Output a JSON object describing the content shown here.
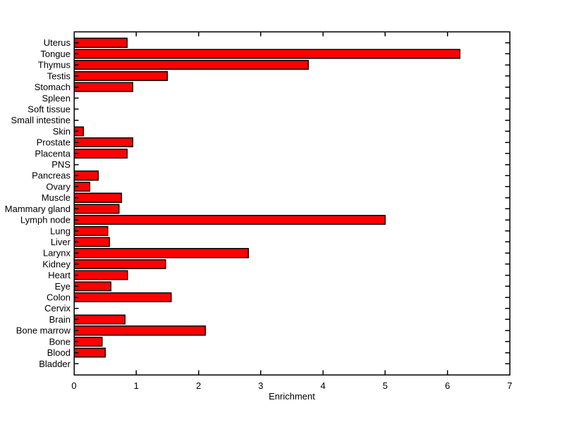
{
  "figure": {
    "background": "#FFFFFF"
  },
  "chart_data": {
    "type": "bar",
    "orientation": "horizontal",
    "title": "",
    "xlabel": "Enrichment",
    "ylabel": "",
    "xlim": [
      0,
      7
    ],
    "x_ticks": [
      "0",
      "1",
      "2",
      "3",
      "4",
      "5",
      "6",
      "7"
    ],
    "grid": false,
    "legend": null,
    "box": true,
    "bar_color": "#FF0000",
    "bar_edge_color": "#000000",
    "axis_color": "#000000",
    "categories": [
      "Uterus",
      "Tongue",
      "Thymus",
      "Testis",
      "Stomach",
      "Spleen",
      "Soft tissue",
      "Small intestine",
      "Skin",
      "Prostate",
      "Placenta",
      "PNS",
      "Pancreas",
      "Ovary",
      "Muscle",
      "Mammary gland",
      "Lymph node",
      "Lung",
      "Liver",
      "Larynx",
      "Kidney",
      "Heart",
      "Eye",
      "Colon",
      "Cervix",
      "Brain",
      "Bone marrow",
      "Bone",
      "Blood",
      "Bladder"
    ],
    "values": [
      0.85,
      6.2,
      3.76,
      1.5,
      0.94,
      0,
      0,
      0,
      0.15,
      0.94,
      0.85,
      0,
      0.39,
      0.25,
      0.76,
      0.72,
      5.0,
      0.54,
      0.57,
      2.8,
      1.47,
      0.86,
      0.59,
      1.56,
      0,
      0.82,
      2.11,
      0.45,
      0.5,
      0
    ]
  }
}
